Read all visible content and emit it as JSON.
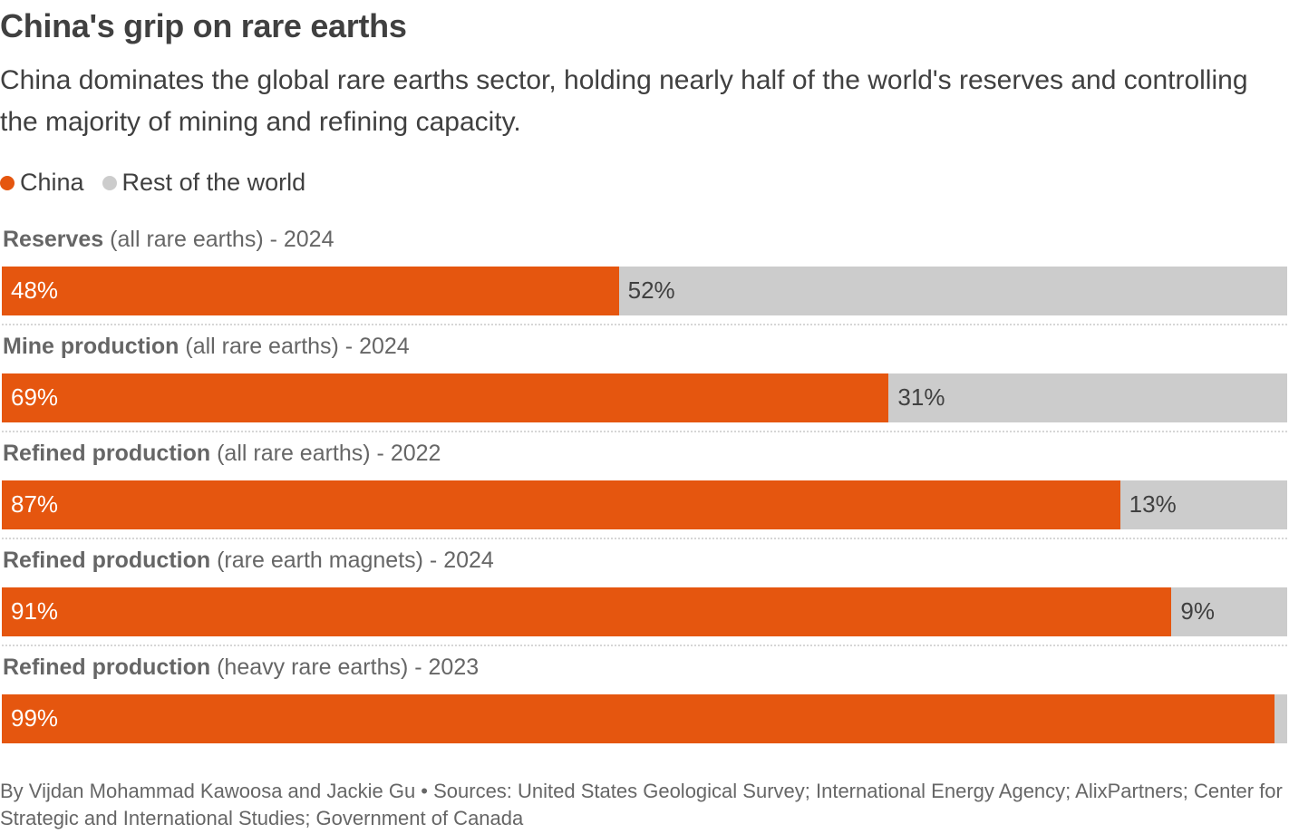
{
  "title": "China's grip on rare earths",
  "subtitle": "China dominates the global rare earths sector, holding nearly half of the world's reserves and controlling the majority of mining and refining capacity.",
  "legend": [
    {
      "label": "China",
      "color": "#e5560f"
    },
    {
      "label": "Rest of the world",
      "color": "#cccccc"
    }
  ],
  "chart_data": {
    "type": "bar",
    "orientation": "horizontal-stacked-100",
    "categories": [
      {
        "bold": "Reserves",
        "detail": " (all rare earths) - 2024"
      },
      {
        "bold": "Mine production",
        "detail": " (all rare earths) - 2024"
      },
      {
        "bold": "Refined production",
        "detail": " (all rare earths) - 2022"
      },
      {
        "bold": "Refined production",
        "detail": " (rare earth magnets) - 2024"
      },
      {
        "bold": "Refined production",
        "detail": " (heavy rare earths) - 2023"
      }
    ],
    "series": [
      {
        "name": "China",
        "color": "#e5560f",
        "values": [
          48,
          69,
          87,
          91,
          99
        ],
        "labels": [
          "48%",
          "69%",
          "87%",
          "91%",
          "99%"
        ]
      },
      {
        "name": "Rest of the world",
        "color": "#cccccc",
        "values": [
          52,
          31,
          13,
          9,
          1
        ],
        "labels": [
          "52%",
          "31%",
          "13%",
          "9%",
          ""
        ]
      }
    ],
    "xlim": [
      0,
      100
    ]
  },
  "footer": "By Vijdan Mohammad Kawoosa and Jackie Gu • Sources: United States Geological Survey; International Energy Agency; AlixPartners; Center for Strategic and International Studies; Government of Canada"
}
